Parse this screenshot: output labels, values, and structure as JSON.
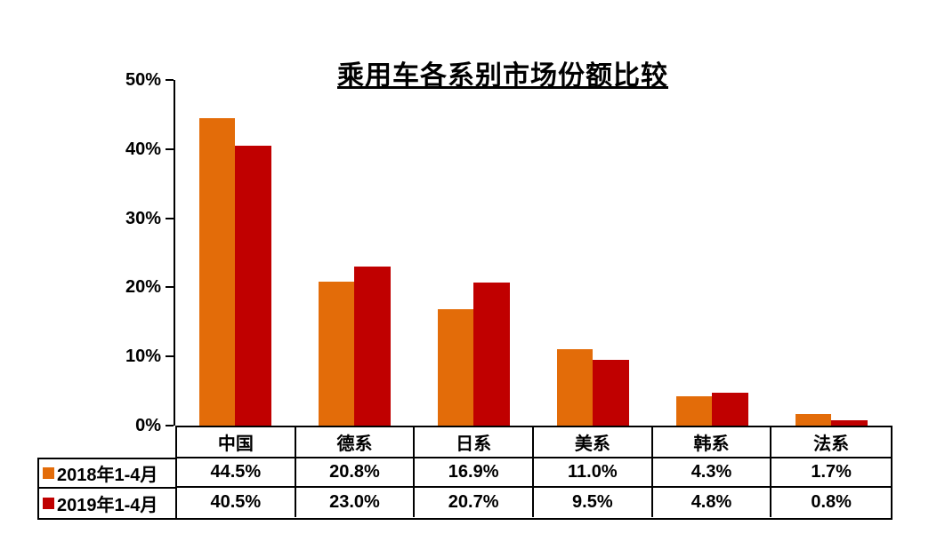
{
  "chart_data": {
    "type": "bar",
    "title": "乘用车各系别市场份额比较",
    "categories": [
      "中国",
      "德系",
      "日系",
      "美系",
      "韩系",
      "法系"
    ],
    "series": [
      {
        "name": "2018年1-4月",
        "color": "#E36C09",
        "values": [
          44.5,
          20.8,
          16.9,
          11.0,
          4.3,
          1.7
        ]
      },
      {
        "name": "2019年1-4月",
        "color": "#C00000",
        "values": [
          40.5,
          23.0,
          20.7,
          9.5,
          4.8,
          0.8
        ]
      }
    ],
    "xlabel": "",
    "ylabel": "",
    "ylim": [
      0,
      50
    ],
    "ytick_labels": [
      "0%",
      "10%",
      "20%",
      "30%",
      "40%",
      "50%"
    ],
    "grid": false,
    "legend_position": "data-table-left",
    "data_table_shown": true,
    "value_format": "percent-1dp",
    "table_values": [
      [
        "44.5%",
        "20.8%",
        "16.9%",
        "11.0%",
        "4.3%",
        "1.7%"
      ],
      [
        "40.5%",
        "23.0%",
        "20.7%",
        "9.5%",
        "4.8%",
        "0.8%"
      ]
    ]
  }
}
